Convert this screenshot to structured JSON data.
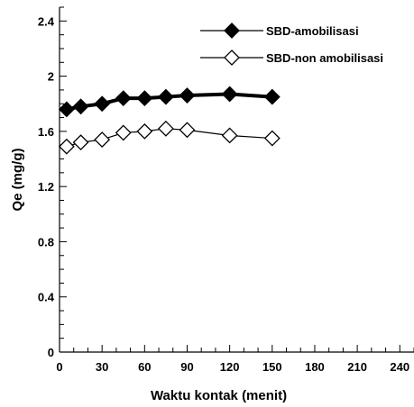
{
  "chart_data": {
    "type": "line",
    "title": "",
    "xlabel": "Waktu kontak (menit)",
    "ylabel": "Qe (mg/g)",
    "xlim": [
      0,
      250
    ],
    "ylim": [
      0,
      2.5
    ],
    "xticks": [
      0,
      30,
      60,
      90,
      120,
      150,
      180,
      210,
      240
    ],
    "yticks": [
      0,
      0.4,
      0.8,
      1.2,
      1.6,
      2,
      2.4
    ],
    "xtick_labels": [
      "0",
      "30",
      "60",
      "90",
      "120",
      "150",
      "180",
      "210",
      "240"
    ],
    "ytick_labels": [
      "0",
      "0.4",
      "0.8",
      "1.2",
      "1.6",
      "2",
      "2.4"
    ],
    "grid": false,
    "legend_position": "top-right",
    "series": [
      {
        "name": "SBD-amobilisasi",
        "marker": "filled-diamond",
        "color": "#000000",
        "x": [
          5,
          15,
          30,
          45,
          60,
          75,
          90,
          120,
          150
        ],
        "y": [
          1.76,
          1.78,
          1.8,
          1.84,
          1.84,
          1.85,
          1.86,
          1.87,
          1.85
        ]
      },
      {
        "name": "SBD-non amobilisasi",
        "marker": "open-diamond",
        "color": "#000000",
        "x": [
          5,
          15,
          30,
          45,
          60,
          75,
          90,
          120,
          150
        ],
        "y": [
          1.49,
          1.52,
          1.54,
          1.59,
          1.6,
          1.62,
          1.61,
          1.57,
          1.55
        ]
      }
    ]
  }
}
